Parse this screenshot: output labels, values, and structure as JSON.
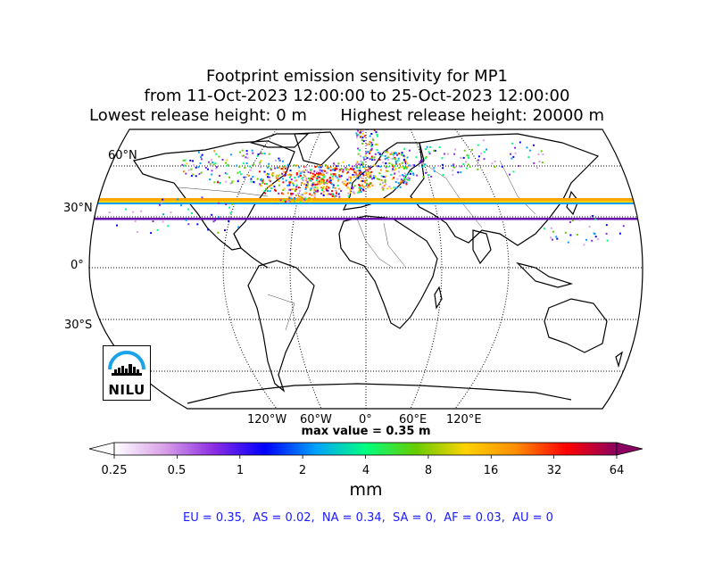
{
  "title": {
    "line1": "Footprint emission sensitivity for MP1",
    "line2": "from 11-Oct-2023 12:00:00 to 25-Oct-2023 12:00:00",
    "lowest": "Lowest release height: 0 m",
    "highest": "Highest release height: 20000 m"
  },
  "map": {
    "projection": "Robinson",
    "lat_labels": [
      "60°N",
      "30°N",
      "0°",
      "30°S"
    ],
    "lon_labels": [
      "120°W",
      "60°W",
      "0°",
      "60°E",
      "120°E"
    ],
    "gridlines": true,
    "hotspots": [
      "North Atlantic",
      "Europe",
      "Northeast America"
    ],
    "colors": {
      "coast": "#000000",
      "grid": "#000000",
      "background": "#ffffff"
    }
  },
  "logo": {
    "text": "NILU",
    "arc_color": "#1aa3e8"
  },
  "max_value": "max value = 0.35 m",
  "colorbar": {
    "ticks": [
      "0.25",
      "0.5",
      "1",
      "2",
      "4",
      "8",
      "16",
      "32",
      "64"
    ],
    "unit": "mm",
    "stops": [
      "#ffffff",
      "#d9a0e8",
      "#8a2be2",
      "#0000ff",
      "#00a0ff",
      "#00ff80",
      "#66cc00",
      "#ffd200",
      "#ff8c00",
      "#ff0000",
      "#8b0060"
    ],
    "extend": "both"
  },
  "regions": [
    {
      "label": "EU",
      "value": "0.35"
    },
    {
      "label": "AS",
      "value": "0.02"
    },
    {
      "label": "NA",
      "value": "0.34"
    },
    {
      "label": "SA",
      "value": "0"
    },
    {
      "label": "AF",
      "value": "0.03"
    },
    {
      "label": "AU",
      "value": "0"
    }
  ],
  "region_summary": "EU = 0.35,  AS = 0.02,  NA = 0.34,  SA = 0,  AF = 0.03,  AU = 0"
}
